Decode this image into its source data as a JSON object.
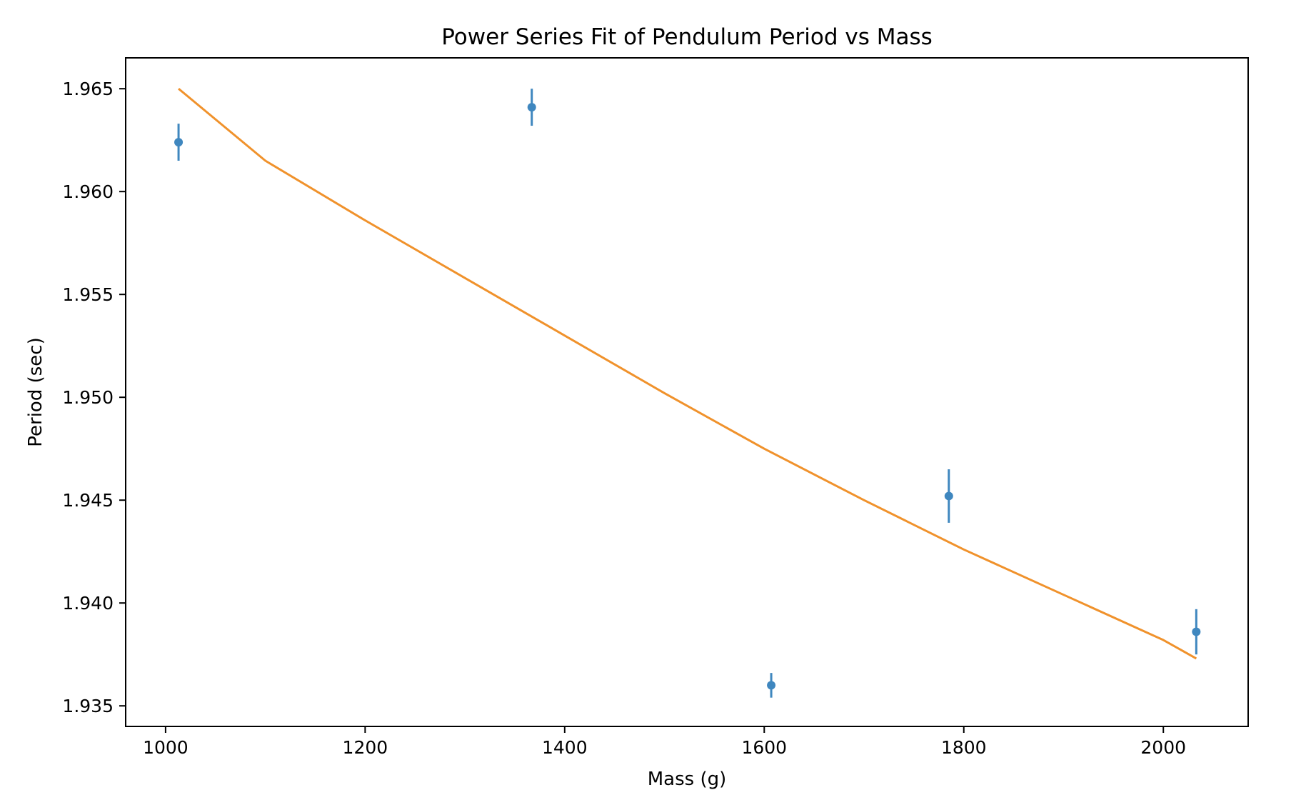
{
  "chart_data": {
    "type": "scatter",
    "title": "Power Series Fit of Pendulum Period vs Mass",
    "xlabel": "Mass (g)",
    "ylabel": "Period (sec)",
    "xlim": [
      960,
      2085
    ],
    "ylim": [
      1.934,
      1.9665
    ],
    "grid": false,
    "x_ticks": [
      1000,
      1200,
      1400,
      1600,
      1800,
      2000
    ],
    "x_tick_labels": [
      "1000",
      "1200",
      "1400",
      "1600",
      "1800",
      "2000"
    ],
    "y_ticks": [
      1.935,
      1.94,
      1.945,
      1.95,
      1.955,
      1.96,
      1.965
    ],
    "y_tick_labels": [
      "1.935",
      "1.940",
      "1.945",
      "1.950",
      "1.955",
      "1.960",
      "1.965"
    ],
    "series": [
      {
        "kind": "errorbar",
        "color": "#3f87bf",
        "x": [
          1013,
          1367,
          1607,
          1785,
          2033
        ],
        "y": [
          1.9624,
          1.9641,
          1.936,
          1.9452,
          1.9386
        ],
        "yerr": [
          0.0009,
          0.0009,
          0.0006,
          0.0013,
          0.0011
        ]
      },
      {
        "kind": "line",
        "color": "#f0922c",
        "x": [
          1013,
          1100,
          1200,
          1300,
          1400,
          1500,
          1600,
          1700,
          1800,
          1900,
          2000,
          2033
        ],
        "y": [
          1.965,
          1.9615,
          1.9586,
          1.9558,
          1.953,
          1.9502,
          1.9475,
          1.945,
          1.9426,
          1.9404,
          1.9382,
          1.9373
        ]
      }
    ]
  }
}
